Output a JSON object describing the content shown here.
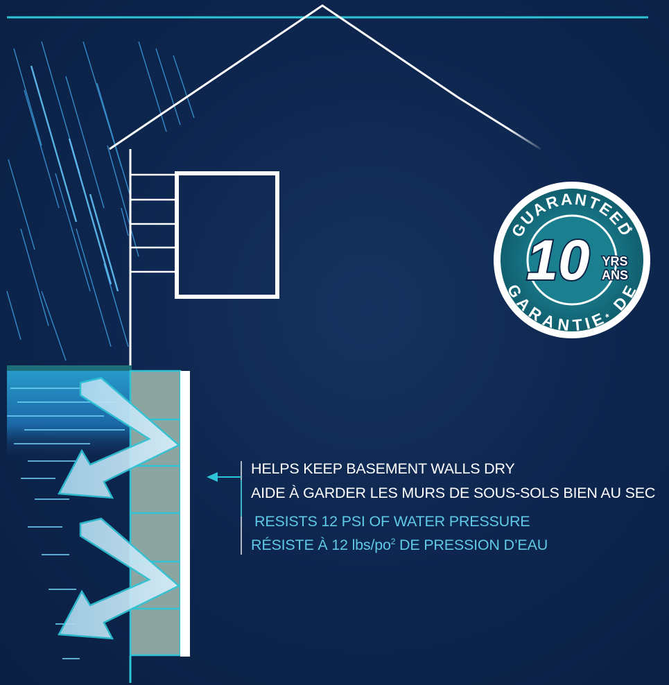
{
  "callouts": {
    "line1_en": "HELPS KEEP BASEMENT WALLS DRY",
    "line1_fr": "AIDE À GARDER LES MURS DE SOUS-SOLS BIEN AU SEC",
    "line2_en": "RESISTS 12 PSI OF WATER PRESSURE",
    "line2_fr_prefix": "RÉSISTE À 12 lbs/po",
    "line2_fr_sup": "2",
    "line2_fr_suffix": " DE PRESSION D’EAU"
  },
  "badge": {
    "top_arc": "GUARANTEED",
    "bottom_arc": "GARANTIE",
    "bottom_arc_suffix": "DE",
    "asterisk": "*",
    "number": "10",
    "unit_en": "YRS",
    "unit_fr": "ANS"
  },
  "colors": {
    "background": "#0c2346",
    "accent": "#2ec4d6",
    "callout_blue": "#5fc9e6",
    "badge_teal": "#1a7f8e",
    "wall_gray": "#8da5a0"
  }
}
